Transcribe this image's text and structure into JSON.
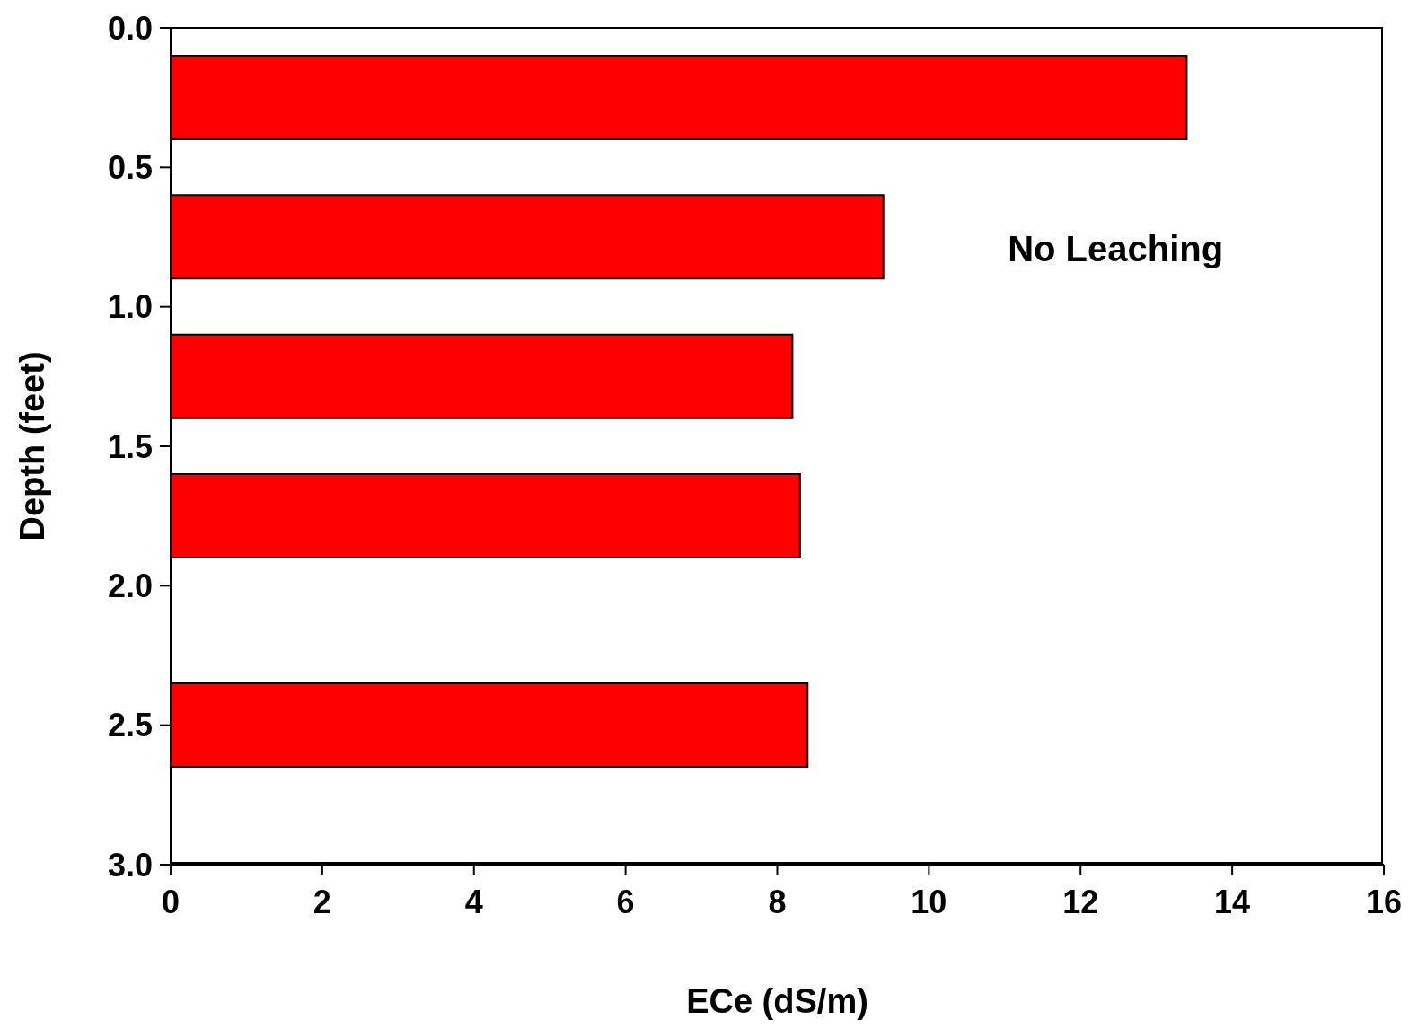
{
  "chart_data": {
    "type": "bar",
    "orientation": "horizontal",
    "xlabel": "ECe (dS/m)",
    "ylabel": "Depth (feet)",
    "x": [
      0.25,
      0.75,
      1.25,
      1.75,
      2.5
    ],
    "values": [
      13.4,
      9.4,
      8.2,
      8.3,
      8.4
    ],
    "color": "#ff0000",
    "xlim": [
      0,
      16
    ],
    "xticks": [
      0,
      2,
      4,
      6,
      8,
      10,
      12,
      14,
      16
    ],
    "ylim": [
      3,
      0
    ],
    "yticks": [
      {
        "value": 0,
        "label": "0.0"
      },
      {
        "value": 0.5,
        "label": "0.5"
      },
      {
        "value": 1,
        "label": "1.0"
      },
      {
        "value": 1.5,
        "label": "1.5"
      },
      {
        "value": 2,
        "label": "2.0"
      },
      {
        "value": 2.5,
        "label": "2.5"
      },
      {
        "value": 3,
        "label": "3.0"
      }
    ],
    "annotations": [
      "No Leaching"
    ],
    "grid": false
  }
}
